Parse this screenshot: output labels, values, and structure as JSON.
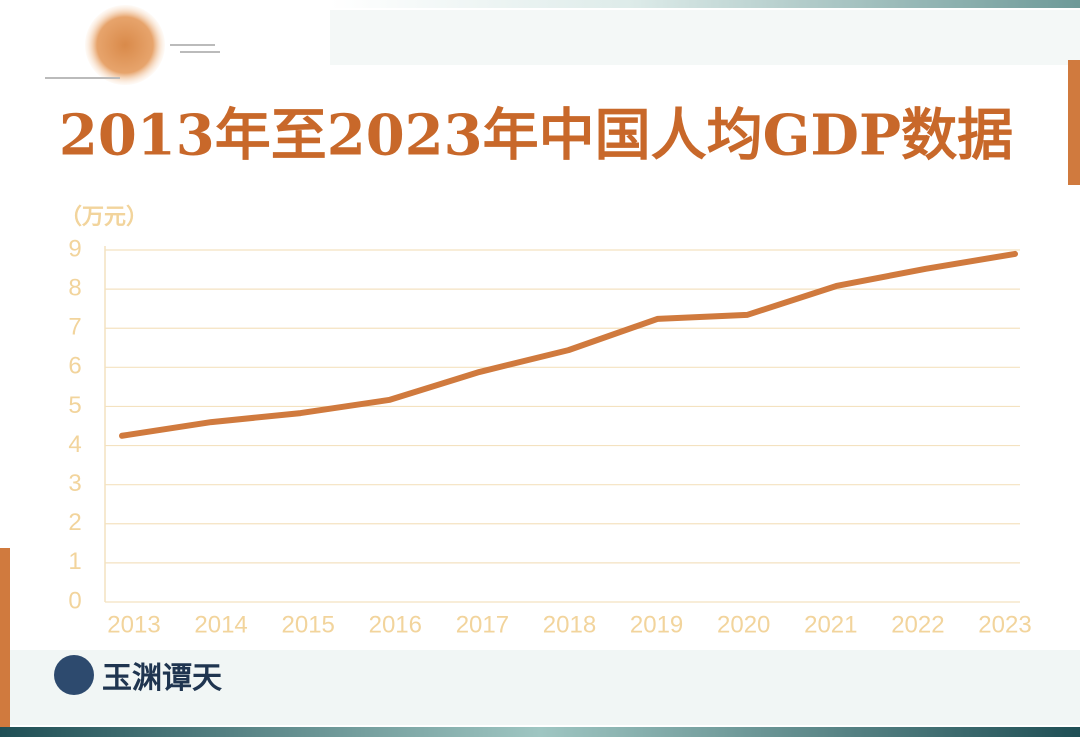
{
  "chart_data": {
    "type": "line",
    "title": "2013年至2023年中国人均GDP数据",
    "y_label": "（万元）",
    "brand": "玉渊谭天",
    "x": [
      "2013",
      "2014",
      "2015",
      "2016",
      "2017",
      "2018",
      "2019",
      "2020",
      "2021",
      "2022",
      "2023"
    ],
    "series": [
      {
        "name": "人均GDP",
        "color": "#d07a3e",
        "values": [
          4.25,
          4.6,
          4.83,
          5.17,
          5.88,
          6.44,
          7.24,
          7.34,
          8.08,
          8.52,
          8.9
        ]
      }
    ],
    "ylim": [
      0,
      9
    ],
    "yticks": [
      0,
      1,
      2,
      3,
      4,
      5,
      6,
      7,
      8,
      9
    ],
    "grid": true,
    "legend": false
  }
}
